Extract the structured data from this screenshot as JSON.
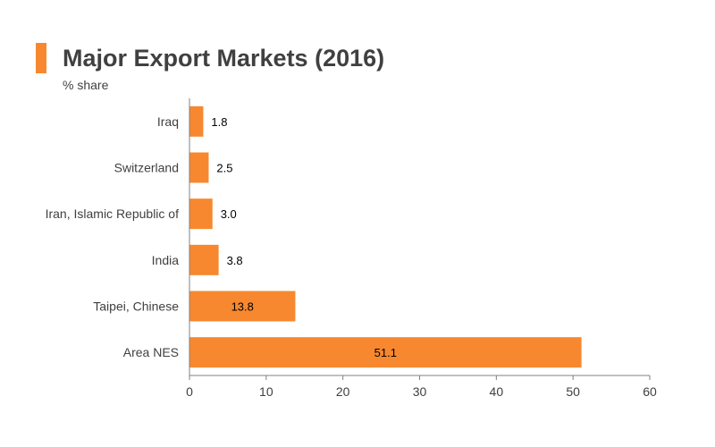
{
  "colors": {
    "accent": "#f7882f",
    "bar": "#f7882f",
    "axis": "#808080",
    "text": "#404040"
  },
  "chart_data": {
    "type": "bar",
    "orientation": "horizontal",
    "title": "Major Export Markets (2016)",
    "subtitle": "% share",
    "categories": [
      "Iraq",
      "Switzerland",
      "Iran, Islamic Republic of",
      "India",
      "Taipei, Chinese",
      "Area NES"
    ],
    "values": [
      1.8,
      2.5,
      3.0,
      3.8,
      13.8,
      51.1
    ],
    "value_labels": [
      "1.8",
      "2.5",
      "3.0",
      "3.8",
      "13.8",
      "51.1"
    ],
    "xlim": [
      0,
      60
    ],
    "xticks": [
      0,
      10,
      20,
      30,
      40,
      50,
      60
    ],
    "grid": false,
    "legend": "none"
  }
}
